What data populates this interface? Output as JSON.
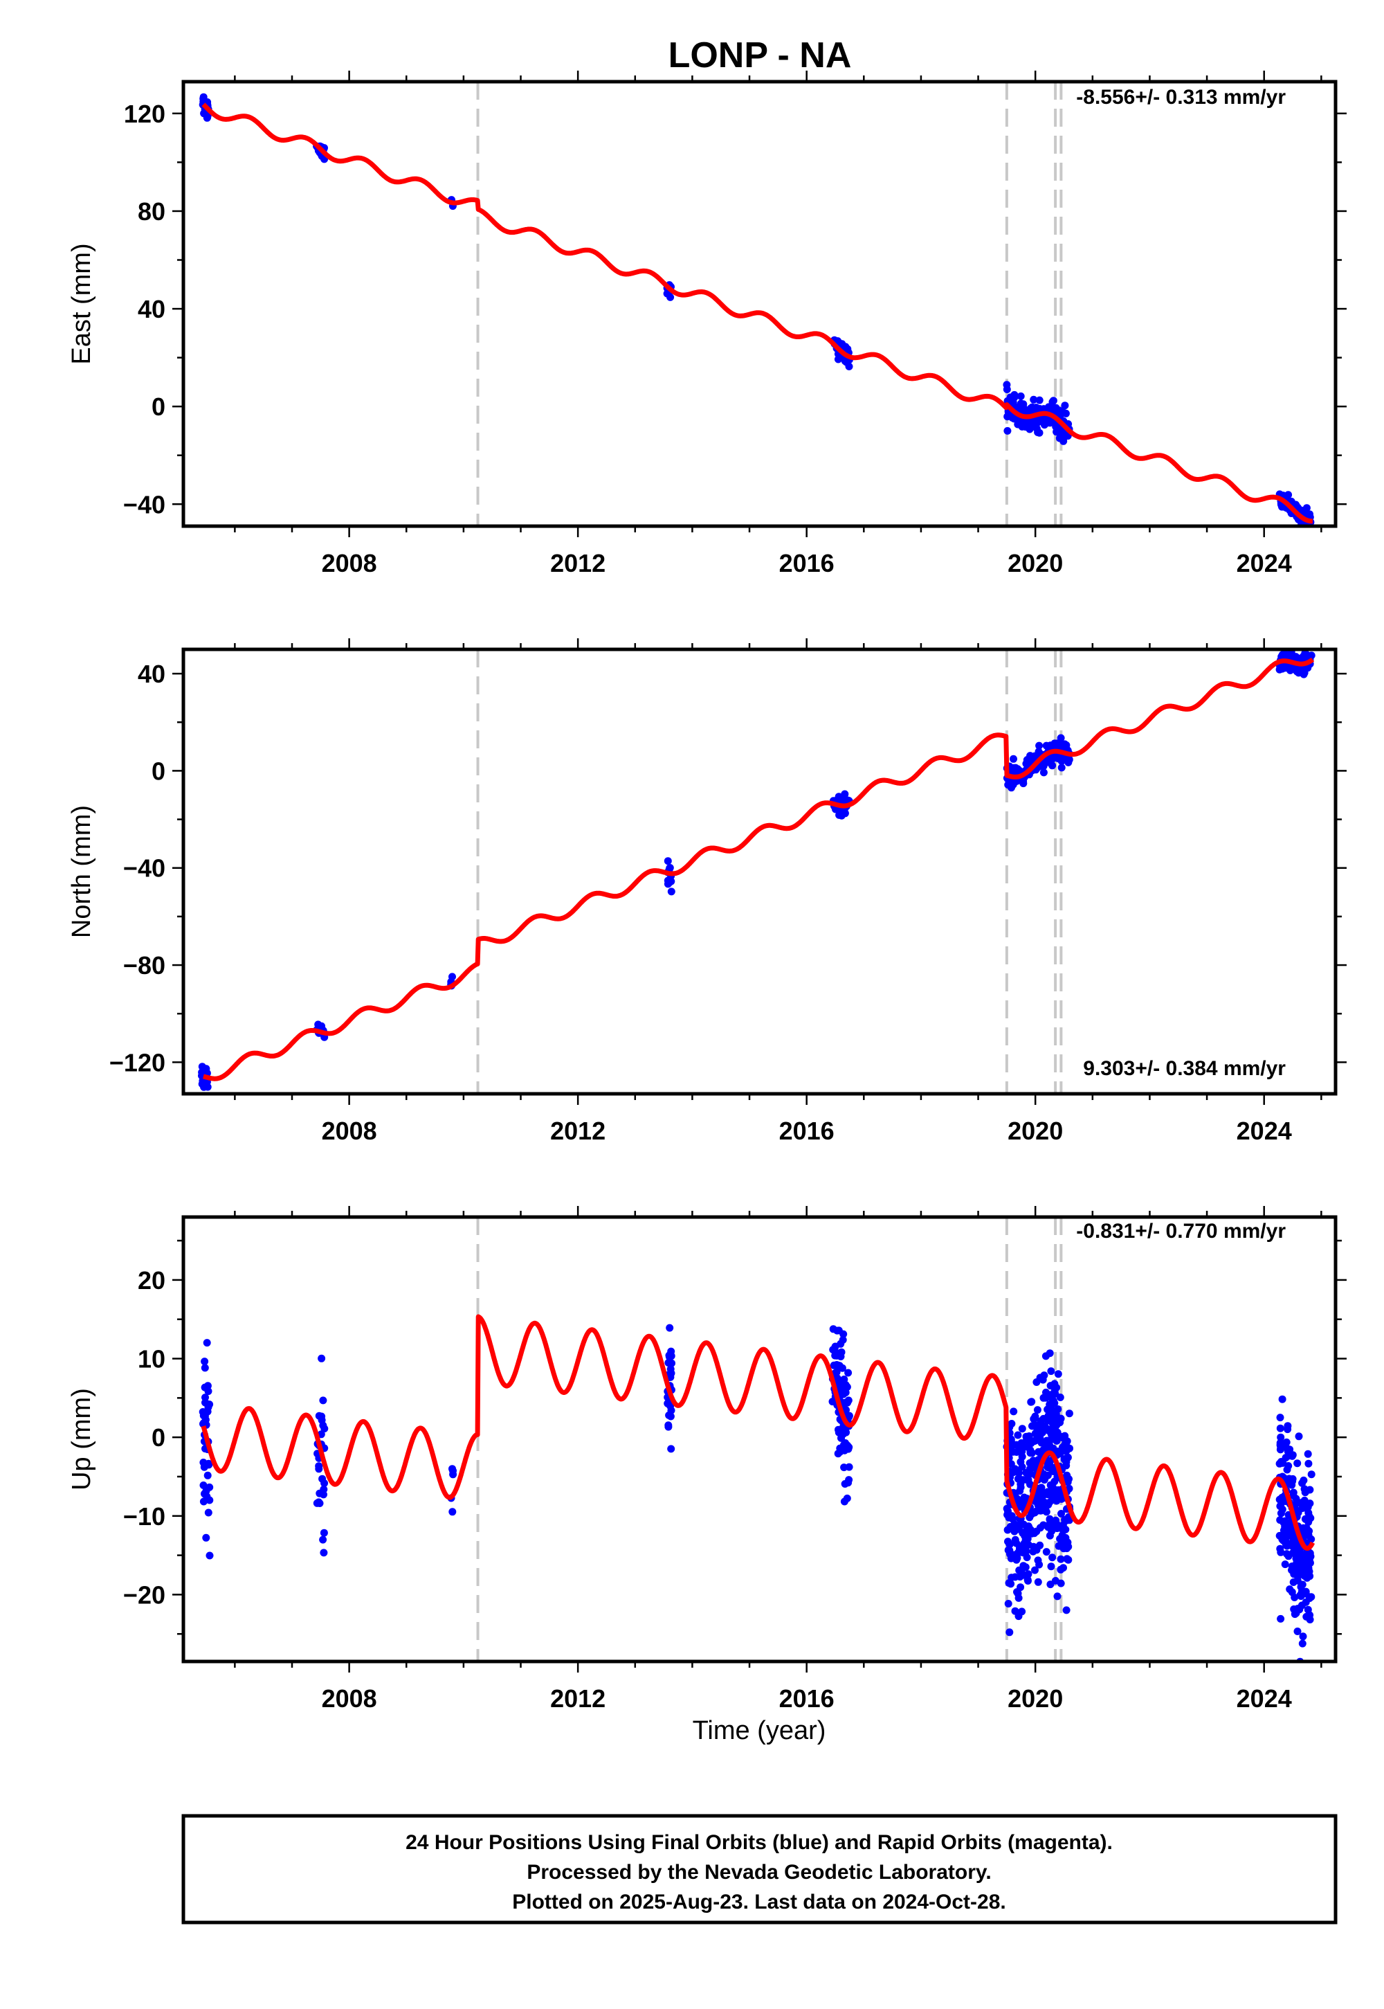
{
  "title": "LONP - NA",
  "xlabel": "Time (year)",
  "footer": {
    "line1": "24 Hour Positions Using Final Orbits (blue) and Rapid Orbits (magenta).",
    "line2": "Processed by the Nevada Geodetic Laboratory.",
    "line3": "Plotted on 2025-Aug-23. Last data on 2024-Oct-28."
  },
  "colors": {
    "data": "#0000ff",
    "model": "#ff0000",
    "offset_line": "#c8c8c8"
  },
  "chart_data": [
    {
      "type": "scatter",
      "name": "east",
      "ylabel": "East (mm)",
      "rate_text": "-8.556+/- 0.313 mm/yr",
      "rate": -8.556,
      "xlim": [
        2005.1,
        2025.25
      ],
      "ylim": [
        -49,
        133
      ],
      "xticks": [
        2008,
        2012,
        2016,
        2020,
        2024
      ],
      "yticks": [
        -40,
        0,
        40,
        80,
        120
      ],
      "offset_epochs": [
        2010.25,
        2019.5,
        2020.35,
        2020.45
      ],
      "model": {
        "intercept_2005": 126.8,
        "seasonal_amp": 2.4,
        "steps": [
          [
            2010.25,
            -3.5
          ],
          [
            2019.5,
            1.5
          ]
        ],
        "x_range": [
          2005.45,
          2024.85
        ]
      },
      "data_clusters": [
        {
          "center": 2005.48,
          "spread": 0.06,
          "n": 18,
          "offset": 0,
          "noise": 2.5
        },
        {
          "center": 2007.5,
          "spread": 0.07,
          "n": 16,
          "offset": 0,
          "noise": 1.5
        },
        {
          "center": 2009.8,
          "spread": 0.02,
          "n": 4,
          "offset": 0.5,
          "noise": 1.5
        },
        {
          "center": 2013.6,
          "spread": 0.04,
          "n": 10,
          "offset": 0,
          "noise": 1.8
        },
        {
          "center": 2016.6,
          "spread": 0.15,
          "n": 35,
          "offset": 0,
          "noise": 1.8
        },
        {
          "center": 2020.05,
          "spread": 0.55,
          "n": 180,
          "offset": 0,
          "noise": 3.0
        },
        {
          "center": 2024.55,
          "spread": 0.28,
          "n": 120,
          "offset": 0,
          "noise": 1.8
        }
      ]
    },
    {
      "type": "scatter",
      "name": "north",
      "ylabel": "North (mm)",
      "rate_text": "9.303+/- 0.384 mm/yr",
      "rate": 9.303,
      "xlim": [
        2005.1,
        2025.25
      ],
      "ylim": [
        -133,
        50
      ],
      "xticks": [
        2008,
        2012,
        2016,
        2020,
        2024
      ],
      "yticks": [
        -120,
        -80,
        -40,
        0,
        40
      ],
      "offset_epochs": [
        2010.25,
        2019.5,
        2020.35,
        2020.45
      ],
      "model": {
        "intercept_2005": -130.8,
        "seasonal_amp": 2.5,
        "steps": [
          [
            2010.25,
            10
          ],
          [
            2019.5,
            -16
          ]
        ],
        "x_range": [
          2005.45,
          2024.85
        ]
      },
      "data_clusters": [
        {
          "center": 2005.48,
          "spread": 0.06,
          "n": 16,
          "offset": 0,
          "noise": 1.8
        },
        {
          "center": 2007.5,
          "spread": 0.07,
          "n": 14,
          "offset": 0,
          "noise": 1.2
        },
        {
          "center": 2009.8,
          "spread": 0.02,
          "n": 5,
          "offset": 0,
          "noise": 2.0
        },
        {
          "center": 2013.6,
          "spread": 0.04,
          "n": 12,
          "offset": -1,
          "noise": 2.5
        },
        {
          "center": 2016.6,
          "spread": 0.15,
          "n": 35,
          "offset": 0,
          "noise": 2.2
        },
        {
          "center": 2020.05,
          "spread": 0.55,
          "n": 180,
          "offset": 0,
          "noise": 2.4
        },
        {
          "center": 2024.55,
          "spread": 0.28,
          "n": 120,
          "offset": 0,
          "noise": 1.8
        }
      ]
    },
    {
      "type": "scatter",
      "name": "up",
      "ylabel": "Up (mm)",
      "rate_text": "-0.831+/- 0.770 mm/yr",
      "rate": -0.831,
      "xlim": [
        2005.1,
        2025.25
      ],
      "ylim": [
        -28.5,
        28
      ],
      "xticks": [
        2008,
        2012,
        2016,
        2020,
        2024
      ],
      "yticks": [
        -20,
        -10,
        0,
        10,
        20
      ],
      "offset_epochs": [
        2010.25,
        2019.5,
        2020.35,
        2020.45
      ],
      "model": {
        "intercept_2005": 0.5,
        "seasonal_amp": 4.2,
        "steps": [
          [
            2010.25,
            15
          ],
          [
            2019.5,
            -9
          ]
        ],
        "x_range": [
          2005.45,
          2024.85
        ]
      },
      "data_clusters": [
        {
          "center": 2005.5,
          "spread": 0.06,
          "n": 40,
          "offset": -1,
          "noise": 6.0
        },
        {
          "center": 2007.5,
          "spread": 0.07,
          "n": 30,
          "offset": -2,
          "noise": 5.5
        },
        {
          "center": 2009.8,
          "spread": 0.02,
          "n": 5,
          "offset": 1.5,
          "noise": 3.0
        },
        {
          "center": 2013.6,
          "spread": 0.04,
          "n": 30,
          "offset": 1,
          "noise": 4.5
        },
        {
          "center": 2016.6,
          "spread": 0.15,
          "n": 110,
          "offset": 1,
          "noise": 4.0
        },
        {
          "center": 2020.05,
          "spread": 0.55,
          "n": 450,
          "offset": -1,
          "noise": 6.0
        },
        {
          "center": 2024.55,
          "spread": 0.28,
          "n": 250,
          "offset": -1,
          "noise": 5.0
        }
      ]
    }
  ]
}
